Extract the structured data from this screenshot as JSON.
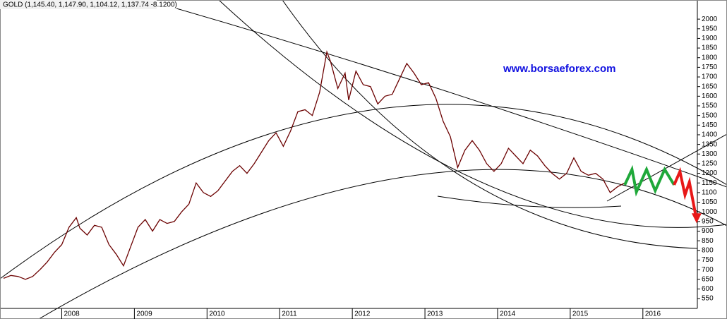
{
  "chart_data": {
    "type": "line",
    "title": "GOLD (1,145.40, 1,147.90, 1,104.12, 1,137.74 -8.1200)",
    "annotation": "www.borsaeforex.com",
    "xlim": [
      2007.15,
      2016.75
    ],
    "xticks": [
      2008,
      2009,
      2010,
      2011,
      2012,
      2013,
      2014,
      2015,
      2016
    ],
    "ylim": [
      499,
      2070
    ],
    "yticks": [
      550,
      600,
      650,
      700,
      750,
      800,
      850,
      900,
      950,
      1000,
      1050,
      1100,
      1150,
      1200,
      1250,
      1300,
      1350,
      1400,
      1450,
      1500,
      1550,
      1600,
      1650,
      1700,
      1750,
      1800,
      1850,
      1900,
      1950,
      2000
    ],
    "series": [
      {
        "color": "#6b0000",
        "x": [
          2007.2,
          2007.3,
          2007.4,
          2007.5,
          2007.6,
          2007.7,
          2007.8,
          2007.9,
          2008.0,
          2008.1,
          2008.2,
          2008.25,
          2008.35,
          2008.45,
          2008.55,
          2008.65,
          2008.75,
          2008.85,
          2008.95,
          2009.05,
          2009.15,
          2009.25,
          2009.35,
          2009.45,
          2009.55,
          2009.65,
          2009.75,
          2009.85,
          2009.95,
          2010.05,
          2010.15,
          2010.25,
          2010.35,
          2010.45,
          2010.55,
          2010.65,
          2010.75,
          2010.85,
          2010.95,
          2011.05,
          2011.15,
          2011.25,
          2011.35,
          2011.45,
          2011.55,
          2011.65,
          2011.7,
          2011.8,
          2011.9,
          2011.95,
          2012.05,
          2012.15,
          2012.25,
          2012.35,
          2012.45,
          2012.55,
          2012.65,
          2012.75,
          2012.85,
          2012.95,
          2013.05,
          2013.15,
          2013.25,
          2013.35,
          2013.45,
          2013.55,
          2013.65,
          2013.75,
          2013.85,
          2013.95,
          2014.05,
          2014.15,
          2014.25,
          2014.35,
          2014.45,
          2014.55,
          2014.65,
          2014.75,
          2014.85,
          2014.95,
          2015.05,
          2015.15,
          2015.25,
          2015.35,
          2015.45,
          2015.55,
          2015.65,
          2015.75
        ],
        "values": [
          655,
          670,
          665,
          650,
          665,
          700,
          740,
          790,
          830,
          920,
          970,
          915,
          880,
          930,
          920,
          830,
          780,
          720,
          820,
          920,
          960,
          900,
          960,
          940,
          950,
          1000,
          1040,
          1150,
          1100,
          1080,
          1110,
          1160,
          1210,
          1240,
          1200,
          1250,
          1310,
          1370,
          1410,
          1340,
          1420,
          1520,
          1530,
          1500,
          1620,
          1830,
          1780,
          1640,
          1720,
          1580,
          1730,
          1660,
          1650,
          1560,
          1600,
          1610,
          1690,
          1770,
          1720,
          1660,
          1670,
          1590,
          1470,
          1390,
          1230,
          1320,
          1370,
          1320,
          1250,
          1210,
          1250,
          1330,
          1290,
          1250,
          1320,
          1290,
          1240,
          1200,
          1170,
          1200,
          1280,
          1210,
          1190,
          1200,
          1170,
          1100,
          1130,
          1150
        ]
      },
      {
        "color": "#1fa83a",
        "x": [
          2015.75,
          2015.85,
          2015.91,
          2016.05,
          2016.17,
          2016.3,
          2016.43
        ],
        "values": [
          1140,
          1220,
          1103,
          1220,
          1110,
          1220,
          1140
        ]
      },
      {
        "color": "#e81818",
        "x": [
          2016.43,
          2016.51,
          2016.58,
          2016.64,
          2016.74
        ],
        "values": [
          1140,
          1209,
          1088,
          1154,
          956
        ]
      }
    ]
  }
}
